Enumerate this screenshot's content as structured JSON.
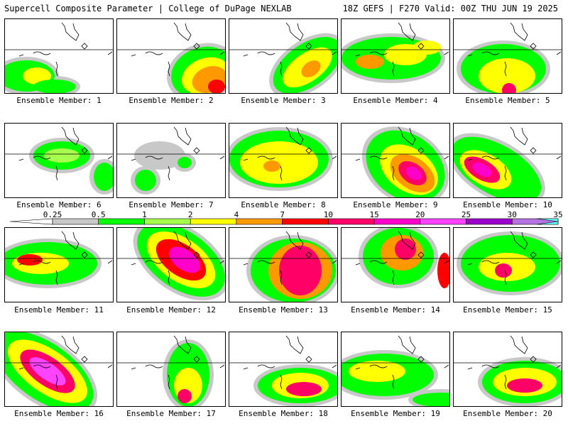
{
  "header": {
    "title": "Supercell Composite Parameter | College of DuPage NEXLAB",
    "run_info": "18Z GEFS | F270 Valid: 00Z THU JUN 19 2025"
  },
  "panel_label_prefix": "Ensemble Member: ",
  "members": [
    "1",
    "2",
    "3",
    "4",
    "5",
    "6",
    "7",
    "8",
    "9",
    "10",
    "11",
    "12",
    "13",
    "14",
    "15",
    "16",
    "17",
    "18",
    "19",
    "20"
  ],
  "legend": {
    "ticks": [
      "0.25",
      "0.5",
      "1",
      "2",
      "4",
      "7",
      "10",
      "15",
      "20",
      "25",
      "30",
      "35"
    ],
    "colors": [
      "#c8c8c8",
      "#00ff00",
      "#a6ff4c",
      "#ffff00",
      "#ff9900",
      "#ff0000",
      "#ff0066",
      "#ff00cc",
      "#ff44ff",
      "#9900cc",
      "#b373e0",
      "#66ffff"
    ]
  }
}
